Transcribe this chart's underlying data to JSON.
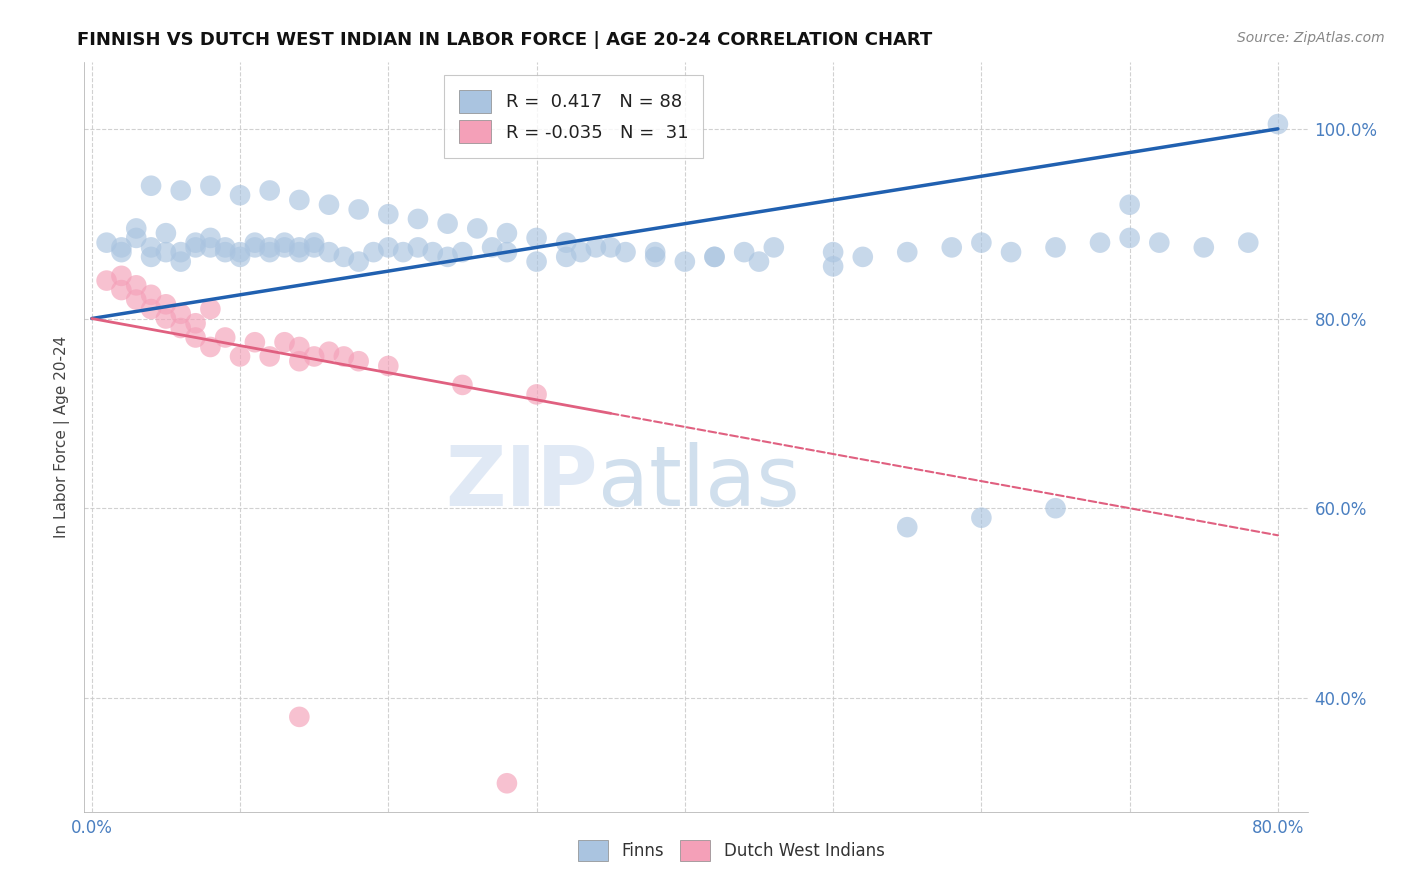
{
  "title": "FINNISH VS DUTCH WEST INDIAN IN LABOR FORCE | AGE 20-24 CORRELATION CHART",
  "source_text": "Source: ZipAtlas.com",
  "ylabel": "In Labor Force | Age 20-24",
  "xlim": [
    -0.005,
    0.82
  ],
  "ylim": [
    0.28,
    1.07
  ],
  "xticks": [
    0.0,
    0.1,
    0.2,
    0.3,
    0.4,
    0.5,
    0.6,
    0.7,
    0.8
  ],
  "xticklabels": [
    "0.0%",
    "",
    "",
    "",
    "",
    "",
    "",
    "",
    "80.0%"
  ],
  "yticks": [
    0.4,
    0.6,
    0.8,
    1.0
  ],
  "yticklabels": [
    "40.0%",
    "60.0%",
    "80.0%",
    "100.0%"
  ],
  "blue_R": 0.417,
  "blue_N": 88,
  "pink_R": -0.035,
  "pink_N": 31,
  "blue_color": "#aac4e0",
  "pink_color": "#f4a0b8",
  "blue_line_color": "#2060b0",
  "pink_line_color": "#e06080",
  "watermark_zip": "ZIP",
  "watermark_atlas": "atlas",
  "background_color": "#ffffff",
  "grid_color": "#cccccc",
  "blue_x": [
    0.01,
    0.02,
    0.02,
    0.03,
    0.03,
    0.04,
    0.04,
    0.05,
    0.05,
    0.06,
    0.06,
    0.07,
    0.07,
    0.08,
    0.08,
    0.09,
    0.09,
    0.1,
    0.1,
    0.11,
    0.11,
    0.12,
    0.12,
    0.13,
    0.13,
    0.14,
    0.14,
    0.15,
    0.15,
    0.16,
    0.17,
    0.18,
    0.19,
    0.2,
    0.21,
    0.22,
    0.23,
    0.24,
    0.25,
    0.27,
    0.28,
    0.3,
    0.32,
    0.33,
    0.34,
    0.36,
    0.38,
    0.4,
    0.42,
    0.44,
    0.46,
    0.5,
    0.52,
    0.55,
    0.58,
    0.6,
    0.62,
    0.65,
    0.68,
    0.7,
    0.72,
    0.75,
    0.78,
    0.8,
    0.04,
    0.06,
    0.08,
    0.1,
    0.12,
    0.14,
    0.16,
    0.18,
    0.2,
    0.22,
    0.24,
    0.26,
    0.28,
    0.3,
    0.32,
    0.35,
    0.38,
    0.42,
    0.45,
    0.5,
    0.55,
    0.6,
    0.65,
    0.7
  ],
  "blue_y": [
    0.88,
    0.875,
    0.87,
    0.885,
    0.895,
    0.865,
    0.875,
    0.87,
    0.89,
    0.86,
    0.87,
    0.875,
    0.88,
    0.875,
    0.885,
    0.87,
    0.875,
    0.865,
    0.87,
    0.875,
    0.88,
    0.875,
    0.87,
    0.875,
    0.88,
    0.875,
    0.87,
    0.875,
    0.88,
    0.87,
    0.865,
    0.86,
    0.87,
    0.875,
    0.87,
    0.875,
    0.87,
    0.865,
    0.87,
    0.875,
    0.87,
    0.86,
    0.865,
    0.87,
    0.875,
    0.87,
    0.865,
    0.86,
    0.865,
    0.87,
    0.875,
    0.87,
    0.865,
    0.87,
    0.875,
    0.88,
    0.87,
    0.875,
    0.88,
    0.885,
    0.88,
    0.875,
    0.88,
    1.005,
    0.94,
    0.935,
    0.94,
    0.93,
    0.935,
    0.925,
    0.92,
    0.915,
    0.91,
    0.905,
    0.9,
    0.895,
    0.89,
    0.885,
    0.88,
    0.875,
    0.87,
    0.865,
    0.86,
    0.855,
    0.58,
    0.59,
    0.6,
    0.92
  ],
  "pink_x": [
    0.01,
    0.02,
    0.02,
    0.03,
    0.03,
    0.04,
    0.04,
    0.05,
    0.05,
    0.06,
    0.06,
    0.07,
    0.07,
    0.08,
    0.08,
    0.09,
    0.1,
    0.11,
    0.12,
    0.13,
    0.14,
    0.14,
    0.15,
    0.16,
    0.17,
    0.18,
    0.2,
    0.25,
    0.3,
    0.14,
    0.28
  ],
  "pink_y": [
    0.84,
    0.83,
    0.845,
    0.82,
    0.835,
    0.81,
    0.825,
    0.8,
    0.815,
    0.79,
    0.805,
    0.78,
    0.795,
    0.81,
    0.77,
    0.78,
    0.76,
    0.775,
    0.76,
    0.775,
    0.755,
    0.77,
    0.76,
    0.765,
    0.76,
    0.755,
    0.75,
    0.73,
    0.72,
    0.38,
    0.31
  ]
}
